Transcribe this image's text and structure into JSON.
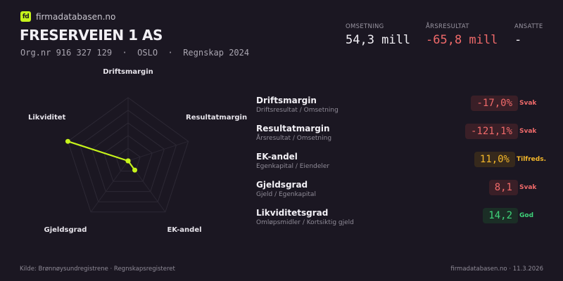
{
  "brand": {
    "logo_text": "fd",
    "name": "firmadatabasen.no",
    "accent": "#c6f31b"
  },
  "company": {
    "name": "FRESERVEIEN 1 AS",
    "meta": "Org.nr 916 327 129  ·  OSLO  ·  Regnskap 2024"
  },
  "kpis": [
    {
      "label": "OMSETNING",
      "value": "54,3 mill",
      "color": "#f2f0f5"
    },
    {
      "label": "ÅRSRESULTAT",
      "value": "-65,8 mill",
      "color": "#f06a6a"
    },
    {
      "label": "ANSATTE",
      "value": "-",
      "color": "#f2f0f5"
    }
  ],
  "chart_data": {
    "type": "radar",
    "axes": [
      "Driftsmargin",
      "Resultatmargin",
      "EK-andel",
      "Gjeldsgrad",
      "Likviditet"
    ],
    "values": [
      0,
      0,
      0.18,
      0,
      1.0
    ],
    "range": [
      0,
      1
    ],
    "rings": 5,
    "color": "#c6f31b"
  },
  "metrics": [
    {
      "name": "Driftsmargin",
      "formula": "Driftsresultat / Omsetning",
      "value": "-17,0%",
      "status": "Svak",
      "color": "#f06a6a",
      "bg": "#3a1f27"
    },
    {
      "name": "Resultatmargin",
      "formula": "Årsresultat / Omsetning",
      "value": "-121,1%",
      "status": "Svak",
      "color": "#f06a6a",
      "bg": "#3a1f27"
    },
    {
      "name": "EK-andel",
      "formula": "Egenkapital / Eiendeler",
      "value": "11,0%",
      "status": "Tilfreds.",
      "color": "#f5b82a",
      "bg": "#36291c"
    },
    {
      "name": "Gjeldsgrad",
      "formula": "Gjeld / Egenkapital",
      "value": "8,1",
      "status": "Svak",
      "color": "#f06a6a",
      "bg": "#3a1f27"
    },
    {
      "name": "Likviditetsgrad",
      "formula": "Omløpsmidler / Kortsiktig gjeld",
      "value": "14,2",
      "status": "God",
      "color": "#3fd47a",
      "bg": "#1b2e26"
    }
  ],
  "footer": {
    "source": "Kilde: Brønnøysundregistrene · Regnskapsregisteret",
    "site_date": "firmadatabasen.no · 11.3.2026"
  }
}
